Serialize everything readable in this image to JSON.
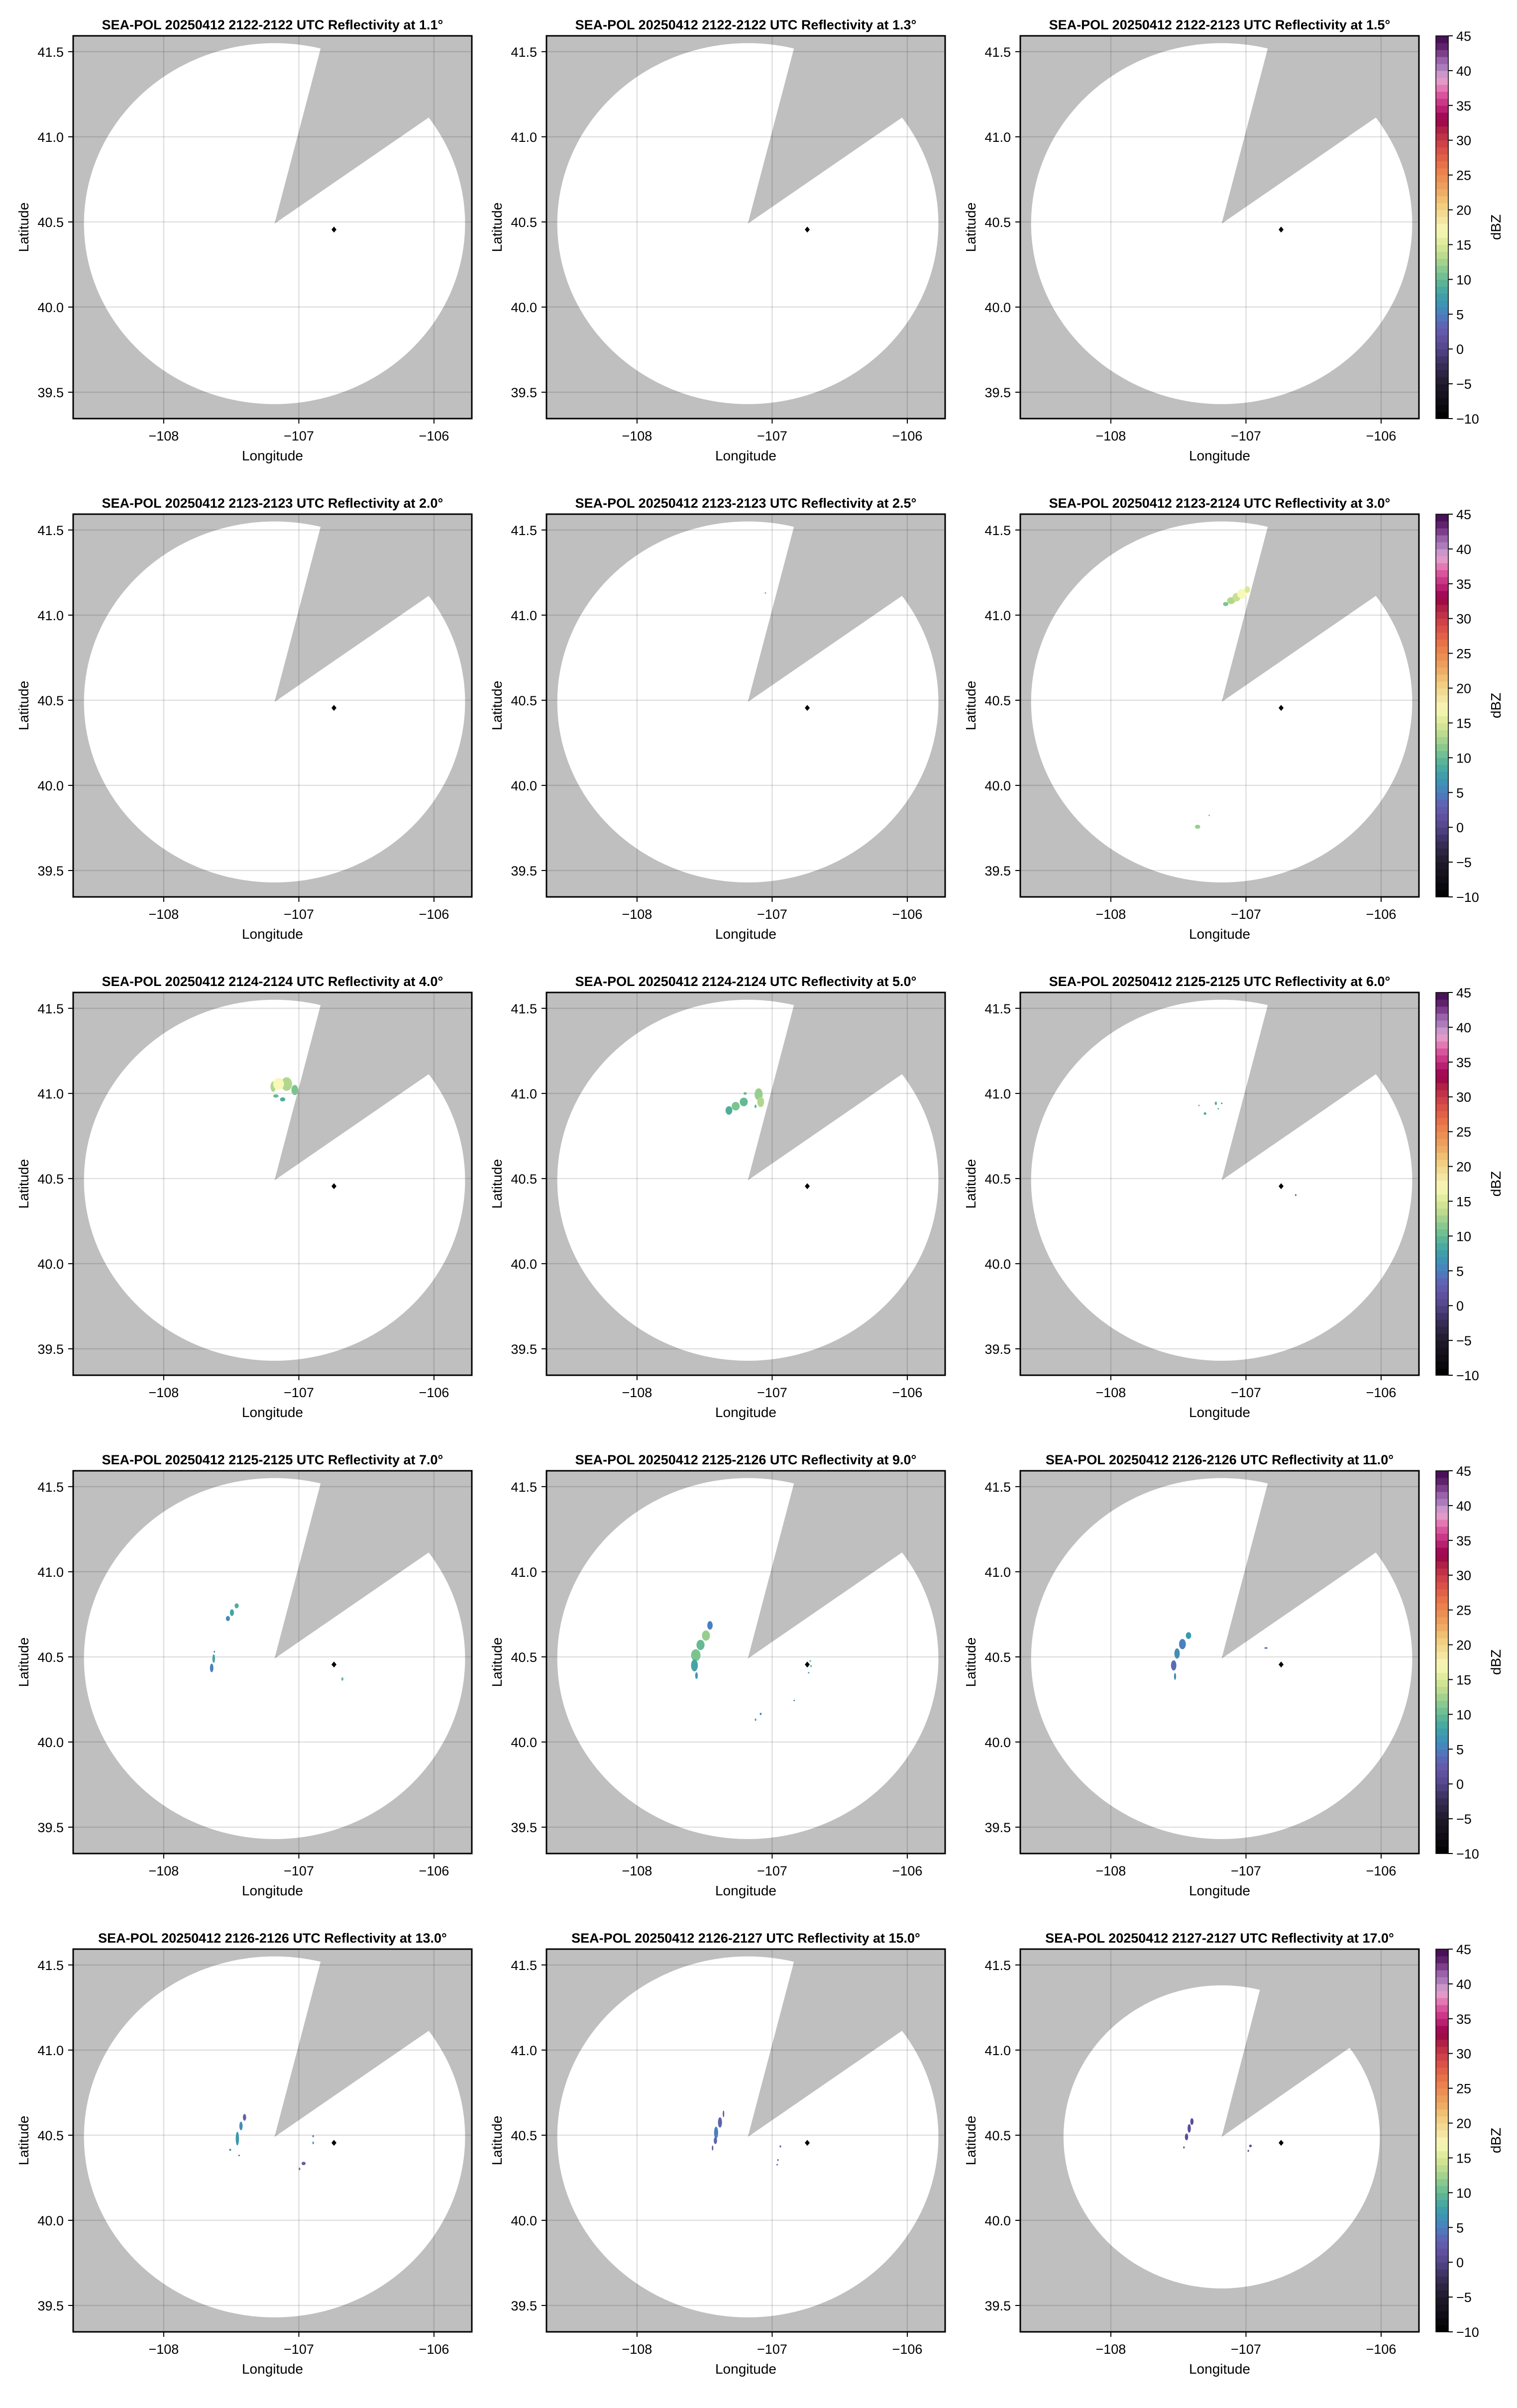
{
  "figure": {
    "xlabel": "Longitude",
    "ylabel": "Latitude",
    "colorbar_label": "dBZ",
    "background_color": "#bfbfbf",
    "coverage_color": "#ffffff",
    "station_marker_color": "#000000"
  },
  "chart_data": {
    "type": "heatmap",
    "subtype": "radar PPI reflectivity small multiples (5 rows x 3 columns)",
    "xlim": [
      -108.67,
      -105.72
    ],
    "ylim": [
      39.345,
      41.593
    ],
    "x_ticks": [
      -108,
      -107,
      -106
    ],
    "x_tick_labels": [
      "−108",
      "−107",
      "−106"
    ],
    "y_ticks": [
      39.5,
      40.0,
      40.5,
      41.0,
      41.5
    ],
    "y_tick_labels": [
      "39.5",
      "40.0",
      "40.5",
      "41.0",
      "41.5"
    ],
    "grid": true,
    "colorbar": {
      "range": [
        -10,
        45
      ],
      "ticks": [
        -10,
        -5,
        0,
        5,
        10,
        15,
        20,
        25,
        30,
        35,
        40,
        45
      ],
      "tick_labels": [
        "−10",
        "−5",
        "0",
        "5",
        "10",
        "15",
        "20",
        "25",
        "30",
        "35",
        "40",
        "45"
      ],
      "bin_width": 1,
      "colormap_stops": [
        [
          -10,
          "#000000"
        ],
        [
          -5,
          "#1f1a2b"
        ],
        [
          -2,
          "#3a2f5c"
        ],
        [
          0,
          "#52468a"
        ],
        [
          2,
          "#6455a6"
        ],
        [
          4,
          "#5a6cb8"
        ],
        [
          5,
          "#4a80c0"
        ],
        [
          7,
          "#3b99b0"
        ],
        [
          9,
          "#4fae9a"
        ],
        [
          11,
          "#7cc48f"
        ],
        [
          13,
          "#b1d78d"
        ],
        [
          15,
          "#dbe895"
        ],
        [
          17,
          "#f8f8b8"
        ],
        [
          19,
          "#f3e09a"
        ],
        [
          21,
          "#f0c878"
        ],
        [
          23,
          "#eda460"
        ],
        [
          26,
          "#ea7a48"
        ],
        [
          28,
          "#de5848"
        ],
        [
          30,
          "#c83a48"
        ],
        [
          32,
          "#a81845"
        ],
        [
          33,
          "#98004a"
        ],
        [
          35,
          "#c42a7c"
        ],
        [
          37,
          "#e062a6"
        ],
        [
          38,
          "#e58fbf"
        ],
        [
          39,
          "#e0a3d0"
        ],
        [
          40,
          "#b688c2"
        ],
        [
          42,
          "#8f55a0"
        ],
        [
          43,
          "#6b2878"
        ],
        [
          45,
          "#3d0a4d"
        ]
      ]
    },
    "station": {
      "lon": -106.74,
      "lat": 40.455,
      "marker": "diamond"
    },
    "echo_fields": [
      "lon",
      "lat",
      "half_width_lon_deg",
      "half_height_lat_deg",
      "dBZ"
    ],
    "panels": [
      {
        "title": "SEA-POL 20250412 2122-2122 UTC Reflectivity at 1.1°",
        "elevation_deg": 1.1,
        "coverage": {
          "center": [
            -107.18,
            40.49
          ],
          "radius_lat_deg": 1.06,
          "radius_lon_deg": 1.41,
          "blocked_azimuths_deg": [
            14,
            54
          ]
        },
        "echoes": []
      },
      {
        "title": "SEA-POL 20250412 2122-2122 UTC Reflectivity at 1.3°",
        "elevation_deg": 1.3,
        "coverage": {
          "center": [
            -107.18,
            40.49
          ],
          "radius_lat_deg": 1.06,
          "radius_lon_deg": 1.41,
          "blocked_azimuths_deg": [
            14,
            54
          ]
        },
        "echoes": []
      },
      {
        "title": "SEA-POL 20250412 2122-2123 UTC Reflectivity at 1.5°",
        "elevation_deg": 1.5,
        "coverage": {
          "center": [
            -107.18,
            40.49
          ],
          "radius_lat_deg": 1.06,
          "radius_lon_deg": 1.41,
          "blocked_azimuths_deg": [
            14,
            54
          ]
        },
        "echoes": []
      },
      {
        "title": "SEA-POL 20250412 2123-2123 UTC Reflectivity at 2.0°",
        "elevation_deg": 2.0,
        "coverage": {
          "center": [
            -107.18,
            40.49
          ],
          "radius_lat_deg": 1.06,
          "radius_lon_deg": 1.41,
          "blocked_azimuths_deg": [
            14,
            54
          ]
        },
        "echoes": []
      },
      {
        "title": "SEA-POL 20250412 2123-2123 UTC Reflectivity at 2.5°",
        "elevation_deg": 2.5,
        "coverage": {
          "center": [
            -107.18,
            40.49
          ],
          "radius_lat_deg": 1.06,
          "radius_lon_deg": 1.41,
          "blocked_azimuths_deg": [
            14,
            54
          ]
        },
        "echoes": [
          [
            -107.05,
            41.13,
            0.004,
            0.004,
            10
          ]
        ]
      },
      {
        "title": "SEA-POL 20250412 2123-2124 UTC Reflectivity at 3.0°",
        "elevation_deg": 3.0,
        "coverage": {
          "center": [
            -107.18,
            40.49
          ],
          "radius_lat_deg": 1.06,
          "radius_lon_deg": 1.41,
          "blocked_azimuths_deg": [
            14,
            54
          ]
        },
        "echoes": [
          [
            -107.15,
            41.065,
            0.02,
            0.012,
            11
          ],
          [
            -107.11,
            41.085,
            0.03,
            0.02,
            13
          ],
          [
            -107.07,
            41.105,
            0.03,
            0.025,
            14
          ],
          [
            -107.03,
            41.125,
            0.035,
            0.028,
            17
          ],
          [
            -106.99,
            41.15,
            0.02,
            0.02,
            15
          ],
          [
            -107.358,
            39.757,
            0.02,
            0.012,
            12
          ],
          [
            -107.272,
            39.824,
            0.003,
            0.004,
            11
          ]
        ]
      },
      {
        "title": "SEA-POL 20250412 2124-2124 UTC Reflectivity at 4.0°",
        "elevation_deg": 4.0,
        "coverage": {
          "center": [
            -107.18,
            40.49
          ],
          "radius_lat_deg": 1.06,
          "radius_lon_deg": 1.41,
          "blocked_azimuths_deg": [
            14,
            54
          ]
        },
        "echoes": [
          [
            -107.19,
            41.04,
            0.02,
            0.03,
            13
          ],
          [
            -107.09,
            41.055,
            0.04,
            0.04,
            13
          ],
          [
            -107.15,
            41.055,
            0.04,
            0.035,
            17
          ],
          [
            -107.03,
            41.02,
            0.025,
            0.03,
            11
          ],
          [
            -107.12,
            40.965,
            0.02,
            0.012,
            9
          ],
          [
            -107.17,
            40.985,
            0.02,
            0.01,
            10
          ]
        ]
      },
      {
        "title": "SEA-POL 20250412 2124-2124 UTC Reflectivity at 5.0°",
        "elevation_deg": 5.0,
        "coverage": {
          "center": [
            -107.18,
            40.49
          ],
          "radius_lat_deg": 1.06,
          "radius_lon_deg": 1.41,
          "blocked_azimuths_deg": [
            14,
            54
          ]
        },
        "echoes": [
          [
            -107.32,
            40.9,
            0.025,
            0.025,
            9
          ],
          [
            -107.27,
            40.925,
            0.03,
            0.025,
            11
          ],
          [
            -107.21,
            40.95,
            0.03,
            0.025,
            10
          ],
          [
            -107.1,
            40.995,
            0.03,
            0.035,
            12
          ],
          [
            -107.085,
            40.95,
            0.025,
            0.03,
            13
          ],
          [
            -107.123,
            40.924,
            0.008,
            0.01,
            10
          ],
          [
            -107.2,
            41.0,
            0.012,
            0.008,
            10
          ]
        ]
      },
      {
        "title": "SEA-POL 20250412 2125-2125 UTC Reflectivity at 6.0°",
        "elevation_deg": 6.0,
        "coverage": {
          "center": [
            -107.18,
            40.49
          ],
          "radius_lat_deg": 1.06,
          "radius_lon_deg": 1.41,
          "blocked_azimuths_deg": [
            14,
            54
          ]
        },
        "echoes": [
          [
            -107.223,
            40.942,
            0.008,
            0.01,
            9
          ],
          [
            -107.303,
            40.882,
            0.01,
            0.008,
            9
          ],
          [
            -107.348,
            40.929,
            0.002,
            0.004,
            10
          ],
          [
            -107.179,
            40.942,
            0.003,
            0.004,
            6
          ],
          [
            -107.205,
            40.91,
            0.003,
            0.003,
            9
          ],
          [
            -106.632,
            40.403,
            0.006,
            0.006,
            6
          ]
        ]
      },
      {
        "title": "SEA-POL 20250412 2125-2125 UTC Reflectivity at 7.0°",
        "elevation_deg": 7.0,
        "coverage": {
          "center": [
            -107.18,
            40.49
          ],
          "radius_lat_deg": 1.06,
          "radius_lon_deg": 1.41,
          "blocked_azimuths_deg": [
            14,
            54
          ]
        },
        "echoes": [
          [
            -107.525,
            40.725,
            0.015,
            0.015,
            6
          ],
          [
            -107.495,
            40.76,
            0.015,
            0.02,
            8
          ],
          [
            -107.46,
            40.8,
            0.015,
            0.015,
            9
          ],
          [
            -107.63,
            40.49,
            0.01,
            0.025,
            8
          ],
          [
            -107.645,
            40.435,
            0.013,
            0.025,
            5
          ],
          [
            -107.625,
            40.53,
            0.005,
            0.005,
            5
          ],
          [
            -106.678,
            40.37,
            0.008,
            0.01,
            10
          ]
        ]
      },
      {
        "title": "SEA-POL 20250412 2125-2126 UTC Reflectivity at 9.0°",
        "elevation_deg": 9.0,
        "coverage": {
          "center": [
            -107.18,
            40.49
          ],
          "radius_lat_deg": 1.06,
          "radius_lon_deg": 1.41,
          "blocked_azimuths_deg": [
            14,
            54
          ]
        },
        "echoes": [
          [
            -107.46,
            40.685,
            0.02,
            0.025,
            5
          ],
          [
            -107.53,
            40.57,
            0.03,
            0.03,
            10
          ],
          [
            -107.49,
            40.625,
            0.03,
            0.03,
            12
          ],
          [
            -107.565,
            40.51,
            0.035,
            0.035,
            11
          ],
          [
            -107.575,
            40.45,
            0.025,
            0.035,
            8
          ],
          [
            -107.56,
            40.39,
            0.01,
            0.02,
            7
          ],
          [
            -106.718,
            40.476,
            0.006,
            0.004,
            8
          ],
          [
            -106.712,
            40.446,
            0.004,
            0.006,
            9
          ],
          [
            -106.73,
            40.407,
            0.003,
            0.003,
            6
          ],
          [
            -106.837,
            40.244,
            0.003,
            0.003,
            6
          ],
          [
            -107.085,
            40.165,
            0.007,
            0.007,
            6
          ],
          [
            -107.123,
            40.131,
            0.004,
            0.007,
            6
          ]
        ]
      },
      {
        "title": "SEA-POL 20250412 2126-2126 UTC Reflectivity at 11.0°",
        "elevation_deg": 11.0,
        "coverage": {
          "center": [
            -107.18,
            40.49
          ],
          "radius_lat_deg": 1.06,
          "radius_lon_deg": 1.41,
          "blocked_azimuths_deg": [
            14,
            54
          ]
        },
        "echoes": [
          [
            -107.425,
            40.625,
            0.02,
            0.02,
            7
          ],
          [
            -107.47,
            40.575,
            0.025,
            0.03,
            5
          ],
          [
            -107.51,
            40.52,
            0.02,
            0.03,
            6
          ],
          [
            -107.535,
            40.45,
            0.02,
            0.03,
            4
          ],
          [
            -107.525,
            40.385,
            0.008,
            0.02,
            6
          ],
          [
            -106.852,
            40.552,
            0.012,
            0.005,
            4
          ]
        ]
      },
      {
        "title": "SEA-POL 20250412 2126-2126 UTC Reflectivity at 13.0°",
        "elevation_deg": 13.0,
        "coverage": {
          "center": [
            -107.18,
            40.49
          ],
          "radius_lat_deg": 1.06,
          "radius_lon_deg": 1.41,
          "blocked_azimuths_deg": [
            14,
            54
          ]
        },
        "echoes": [
          [
            -107.402,
            40.605,
            0.012,
            0.02,
            3
          ],
          [
            -107.428,
            40.554,
            0.012,
            0.025,
            6
          ],
          [
            -107.455,
            40.48,
            0.012,
            0.04,
            7
          ],
          [
            -107.508,
            40.414,
            0.008,
            0.006,
            6
          ],
          [
            -107.442,
            40.381,
            0.004,
            0.004,
            2
          ],
          [
            -106.894,
            40.494,
            0.005,
            0.006,
            3
          ],
          [
            -106.894,
            40.455,
            0.006,
            0.008,
            7
          ],
          [
            -106.965,
            40.334,
            0.015,
            0.01,
            3
          ],
          [
            -106.995,
            40.302,
            0.004,
            0.008,
            3
          ]
        ]
      },
      {
        "title": "SEA-POL 20250412 2126-2127 UTC Reflectivity at 15.0°",
        "elevation_deg": 15.0,
        "coverage": {
          "center": [
            -107.18,
            40.49
          ],
          "radius_lat_deg": 1.06,
          "radius_lon_deg": 1.41,
          "blocked_azimuths_deg": [
            14,
            54
          ]
        },
        "echoes": [
          [
            -107.36,
            40.625,
            0.005,
            0.02,
            2
          ],
          [
            -107.386,
            40.575,
            0.015,
            0.03,
            3
          ],
          [
            -107.415,
            40.515,
            0.015,
            0.035,
            5
          ],
          [
            -107.42,
            40.468,
            0.012,
            0.02,
            3
          ],
          [
            -107.441,
            40.425,
            0.005,
            0.015,
            2
          ],
          [
            -106.939,
            40.434,
            0.006,
            0.006,
            2
          ],
          [
            -106.957,
            40.354,
            0.006,
            0.005,
            2
          ],
          [
            -106.963,
            40.327,
            0.004,
            0.003,
            2
          ]
        ]
      },
      {
        "title": "SEA-POL 20250412 2127-2127 UTC Reflectivity at 17.0°",
        "elevation_deg": 17.0,
        "coverage": {
          "center": [
            -107.18,
            40.49
          ],
          "radius_lat_deg": 0.89,
          "radius_lon_deg": 1.17,
          "blocked_azimuths_deg": [
            14,
            54
          ]
        },
        "echoes": [
          [
            -107.4,
            40.58,
            0.012,
            0.02,
            1
          ],
          [
            -107.42,
            40.54,
            0.012,
            0.025,
            1
          ],
          [
            -107.44,
            40.49,
            0.012,
            0.02,
            1
          ],
          [
            -106.967,
            40.437,
            0.01,
            0.008,
            1
          ],
          [
            -106.983,
            40.408,
            0.004,
            0.006,
            1
          ],
          [
            -107.459,
            40.428,
            0.002,
            0.006,
            1
          ]
        ]
      }
    ]
  }
}
